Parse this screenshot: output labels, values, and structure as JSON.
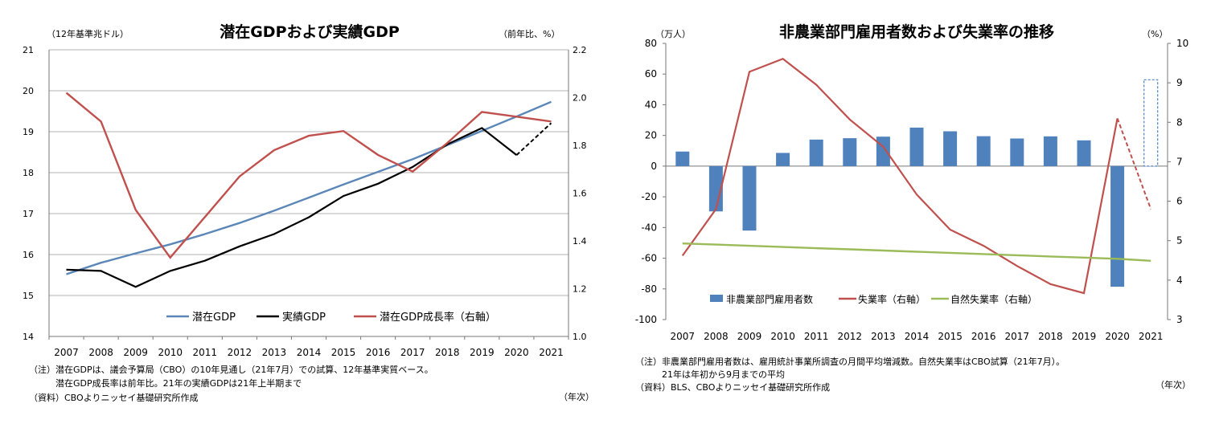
{
  "chart_data": [
    {
      "type": "line",
      "title": "潜在GDPおよび実績GDP",
      "left_unit": "（12年基準兆ドル）",
      "right_unit": "（前年比、%）",
      "x_unit": "（年次）",
      "categories": [
        "2007",
        "2008",
        "2009",
        "2010",
        "2011",
        "2012",
        "2013",
        "2014",
        "2015",
        "2016",
        "2017",
        "2018",
        "2019",
        "2020",
        "2021"
      ],
      "ylim_left": [
        14,
        21
      ],
      "yticks_left": [
        14,
        15,
        16,
        17,
        18,
        19,
        20,
        21
      ],
      "ylim_right": [
        1.0,
        2.2
      ],
      "yticks_right": [
        "1.0",
        "1.2",
        "1.4",
        "1.6",
        "1.8",
        "2.0",
        "2.2"
      ],
      "series": [
        {
          "name": "潜在GDP",
          "axis": "left",
          "color": "#5b87b8",
          "values": [
            15.52,
            15.8,
            16.03,
            16.25,
            16.5,
            16.77,
            17.07,
            17.39,
            17.71,
            18.02,
            18.33,
            18.67,
            19.02,
            19.37,
            19.73
          ]
        },
        {
          "name": "実績GDP",
          "axis": "left",
          "color": "#000000",
          "values": [
            15.63,
            15.6,
            15.21,
            15.6,
            15.85,
            16.2,
            16.5,
            16.91,
            17.43,
            17.73,
            18.14,
            18.69,
            19.09,
            18.43,
            19.21
          ],
          "dashed_from_index": 13
        },
        {
          "name": "潜在GDP成長率（右軸）",
          "axis": "right",
          "color": "#c0504d",
          "values": [
            2.02,
            1.9,
            1.53,
            1.33,
            1.5,
            1.67,
            1.78,
            1.84,
            1.86,
            1.76,
            1.69,
            1.81,
            1.94,
            1.92,
            1.9
          ]
        }
      ],
      "legend": [
        "潜在GDP",
        "実績GDP",
        "潜在GDP成長率（右軸）"
      ],
      "notes": [
        "（注）潜在GDPは、議会予算局（CBO）の10年見通し（21年7月）での試算、12年基準実質ベース。",
        "　　　潜在GDP成長率は前年比。21年の実績GDPは21年上半期まで",
        "（資料）CBOよりニッセイ基礎研究所作成"
      ]
    },
    {
      "type": "bar+line",
      "title": "非農業部門雇用者数および失業率の推移",
      "left_unit": "（万人）",
      "right_unit": "（%）",
      "x_unit": "（年次）",
      "categories": [
        "2007",
        "2008",
        "2009",
        "2010",
        "2011",
        "2012",
        "2013",
        "2014",
        "2015",
        "2016",
        "2017",
        "2018",
        "2019",
        "2020",
        "2021"
      ],
      "ylim_left": [
        -100,
        80
      ],
      "yticks_left": [
        -100,
        -80,
        -60,
        -40,
        -20,
        0,
        20,
        40,
        60,
        80
      ],
      "ylim_right": [
        3,
        10
      ],
      "yticks_right": [
        3,
        4,
        5,
        6,
        7,
        8,
        9,
        10
      ],
      "series": [
        {
          "name": "非農業部門雇用者数",
          "kind": "bar",
          "axis": "left",
          "color": "#4f81bd",
          "values": [
            9.5,
            -29.5,
            -42,
            8.6,
            17.3,
            18.2,
            19.2,
            25.1,
            22.7,
            19.5,
            18.0,
            19.4,
            16.8,
            -78.6,
            56.3
          ],
          "outlined_index": 14
        },
        {
          "name": "失業率（右軸）",
          "kind": "line",
          "axis": "right",
          "color": "#c0504d",
          "values": [
            4.62,
            5.8,
            9.28,
            9.61,
            8.95,
            8.07,
            7.38,
            6.17,
            5.28,
            4.87,
            4.36,
            3.9,
            3.67,
            8.1,
            5.8
          ],
          "dashed_from_index": 13
        },
        {
          "name": "自然失業率（右軸）",
          "kind": "line",
          "axis": "right",
          "color": "#9bbb59",
          "values": [
            4.93,
            4.9,
            4.87,
            4.84,
            4.81,
            4.78,
            4.75,
            4.72,
            4.69,
            4.66,
            4.63,
            4.6,
            4.57,
            4.54,
            4.49
          ]
        }
      ],
      "legend": [
        "非農業部門雇用者数",
        "失業率（右軸）",
        "自然失業率（右軸）"
      ],
      "notes": [
        "（注）非農業部門雇用者数は、雇用統計事業所調査の月間平均増減数。自然失業率はCBO試算（21年7月）。",
        "　　　21年は年初から9月までの平均",
        "（資料）BLS、CBOよりニッセイ基礎研究所作成"
      ]
    }
  ]
}
